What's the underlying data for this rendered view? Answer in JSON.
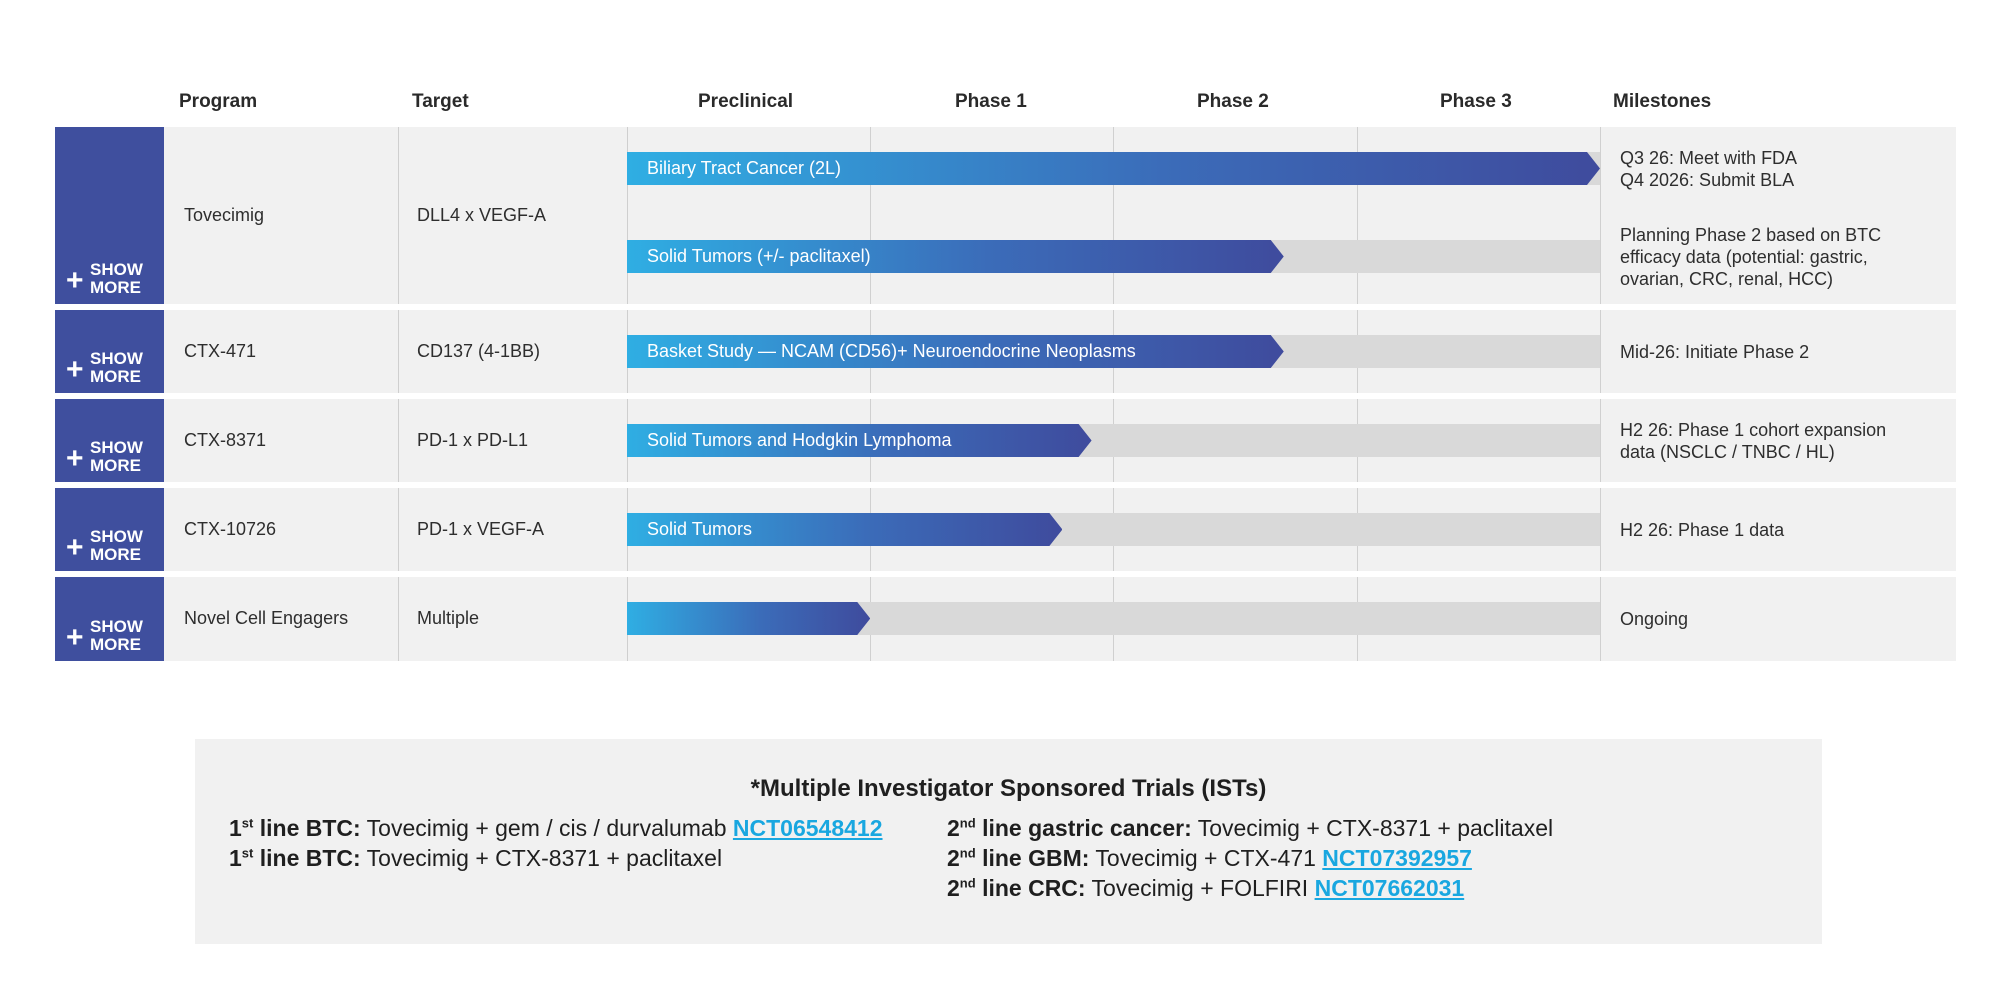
{
  "headers": {
    "program": "Program",
    "target": "Target",
    "preclinical": "Preclinical",
    "phase1": "Phase 1",
    "phase2": "Phase 2",
    "phase3": "Phase 3",
    "milestones": "Milestones"
  },
  "show_more": {
    "label_line1": "SHOW",
    "label_line2": "MORE",
    "icon": "plus-icon"
  },
  "colors": {
    "show_more_bg": "#3f4f9e",
    "bar_start": "#2faee3",
    "bar_end": "#3f4b9d",
    "track": "#d9d9d9",
    "row_bg": "#f1f1f1",
    "link": "#19a7e0"
  },
  "chart_data": {
    "type": "table",
    "stages": [
      "Preclinical",
      "Phase 1",
      "Phase 2",
      "Phase 3"
    ],
    "programs": [
      {
        "program": "Tovecimig",
        "target": "DLL4 x VEGF-A",
        "indications": [
          {
            "label": "Biliary Tract Cancer (2L)",
            "progress_stages": 4.0,
            "milestone": [
              "Q3 26: Meet with FDA",
              "Q4 2026: Submit BLA"
            ]
          },
          {
            "label": "Solid Tumors (+/- paclitaxel)",
            "progress_stages": 2.7,
            "milestone": [
              "Planning Phase 2 based on BTC",
              "efficacy data (potential: gastric,",
              "ovarian, CRC, renal, HCC)"
            ]
          }
        ]
      },
      {
        "program": "CTX-471",
        "target": "CD137 (4-1BB)",
        "indications": [
          {
            "label": "Basket Study — NCAM (CD56)+ Neuroendocrine Neoplasms",
            "progress_stages": 2.7,
            "milestone": [
              "Mid-26: Initiate Phase 2"
            ]
          }
        ]
      },
      {
        "program": "CTX-8371",
        "target": "PD-1 x PD-L1",
        "indications": [
          {
            "label": "Solid Tumors and Hodgkin Lymphoma",
            "progress_stages": 1.91,
            "milestone": [
              "H2 26: Phase 1 cohort expansion",
              "data (NSCLC / TNBC / HL)"
            ]
          }
        ]
      },
      {
        "program": "CTX-10726",
        "target": "PD-1 x VEGF-A",
        "indications": [
          {
            "label": "Solid Tumors",
            "progress_stages": 1.79,
            "milestone": [
              "H2 26: Phase 1 data"
            ]
          }
        ]
      },
      {
        "program": "Novel Cell Engagers",
        "target": "Multiple",
        "indications": [
          {
            "label": "",
            "progress_stages": 1.0,
            "milestone": [
              "Ongoing"
            ]
          }
        ]
      }
    ]
  },
  "ists": {
    "title": "*Multiple Investigator Sponsored Trials (ISTs)",
    "left": [
      {
        "num": "1",
        "sup": "st",
        "label": " line BTC:",
        "text": " Tovecimig + gem / cis / durvalumab ",
        "link": "NCT06548412"
      },
      {
        "num": "1",
        "sup": "st",
        "label": " line BTC:",
        "text": " Tovecimig + CTX-8371 + paclitaxel",
        "link": ""
      }
    ],
    "right": [
      {
        "num": "2",
        "sup": "nd",
        "label": " line gastric cancer:",
        "text": " Tovecimig + CTX-8371 + paclitaxel",
        "link": ""
      },
      {
        "num": "2",
        "sup": "nd",
        "label": " line GBM:",
        "text": " Tovecimig + CTX-471 ",
        "link": "NCT07392957"
      },
      {
        "num": "2",
        "sup": "nd",
        "label": " line CRC:",
        "text": " Tovecimig + FOLFIRI ",
        "link": "NCT07662031"
      }
    ]
  }
}
